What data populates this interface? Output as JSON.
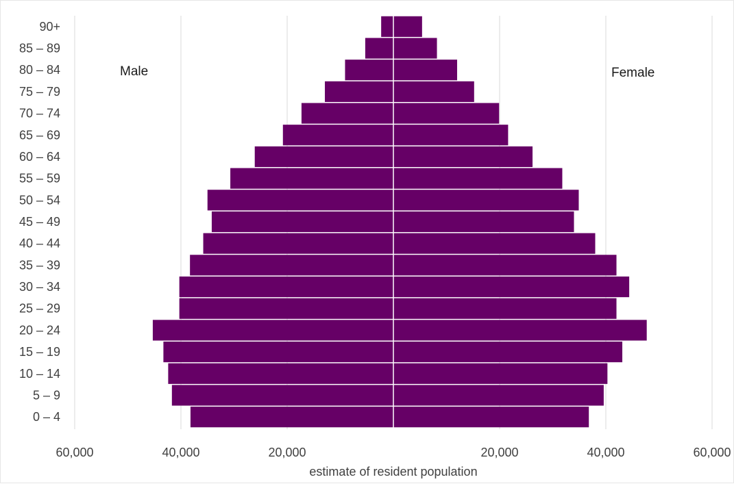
{
  "chart_data": {
    "type": "bar",
    "orientation": "horizontal",
    "layout": "population-pyramid",
    "categories": [
      "0 – 4",
      "5 – 9",
      "10 – 14",
      "15 – 19",
      "20 – 24",
      "25 – 29",
      "30 – 34",
      "35 – 39",
      "40 – 44",
      "45 – 49",
      "50 – 54",
      "55 – 59",
      "60 – 64",
      "65 – 69",
      "70 – 74",
      "75 – 79",
      "80 – 84",
      "85 – 89",
      "90+"
    ],
    "series": [
      {
        "name": "Male",
        "side": "left",
        "color": "#660066",
        "values": [
          38200,
          41700,
          42400,
          43300,
          45300,
          40300,
          40300,
          38300,
          35800,
          34200,
          35000,
          30700,
          26100,
          20800,
          17300,
          12900,
          9100,
          5300,
          2300
        ]
      },
      {
        "name": "Female",
        "side": "right",
        "color": "#660066",
        "values": [
          36800,
          39600,
          40300,
          43100,
          47700,
          42000,
          44400,
          42000,
          38000,
          34000,
          34900,
          31800,
          26200,
          21600,
          19900,
          15200,
          12000,
          8200,
          5400
        ]
      }
    ],
    "xlabel": "estimate of resident population",
    "x_ticks_left": [
      "60,000",
      "40,000",
      "20,000"
    ],
    "x_ticks_right": [
      "20,000",
      "40,000",
      "60,000"
    ],
    "xlim": [
      -60000,
      60000
    ],
    "grid": true,
    "legend": "none"
  }
}
